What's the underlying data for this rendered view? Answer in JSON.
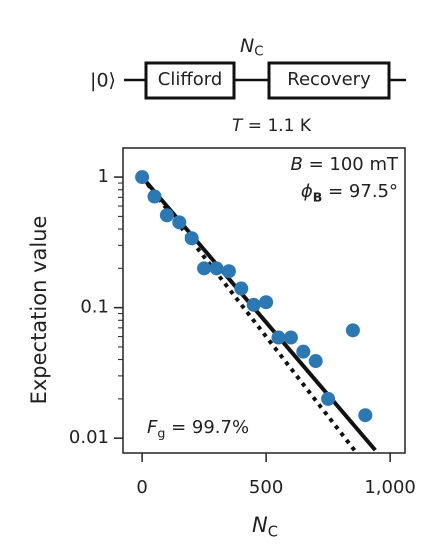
{
  "circuit": {
    "state": "|0⟩",
    "gates": [
      "Clifford",
      "Recovery"
    ],
    "repeat_label": [
      {
        "text": "N",
        "italic": true
      },
      {
        "text": "C",
        "sub": true
      }
    ],
    "condition": [
      {
        "text": "T",
        "italic": true
      },
      {
        "text": " = 1.1 K"
      }
    ]
  },
  "chart_data": {
    "type": "scatter",
    "x_label": [
      {
        "text": "N",
        "italic": true
      },
      {
        "text": "C",
        "sub": true
      }
    ],
    "y_label": "Expectation value",
    "points": {
      "color": "#2b78b3",
      "x": [
        0,
        50,
        100,
        150,
        200,
        250,
        300,
        350,
        400,
        450,
        500,
        550,
        600,
        650,
        700,
        750,
        850,
        900
      ],
      "y": [
        1.0,
        0.71,
        0.51,
        0.45,
        0.34,
        0.2,
        0.2,
        0.19,
        0.14,
        0.105,
        0.11,
        0.059,
        0.059,
        0.046,
        0.039,
        0.02,
        0.067,
        0.015
      ]
    },
    "lines": [
      {
        "x": [
          0,
          940
        ],
        "y": [
          1.0,
          0.0081
        ],
        "color": "#111111",
        "style": "solid"
      },
      {
        "x": [
          0,
          865
        ],
        "y": [
          1.0,
          0.0077
        ],
        "color": "#111111",
        "style": "dotted"
      }
    ],
    "annotations": [
      [
        {
          "text": "B",
          "italic": true
        },
        {
          "text": " = 100 mT"
        }
      ],
      [
        {
          "text": "ϕ",
          "italic": true
        },
        {
          "text": "B",
          "sub": true,
          "bold": true
        },
        {
          "text": " = 97.5°"
        }
      ],
      [
        {
          "text": "F",
          "italic": true
        },
        {
          "text": "g",
          "sub": true
        },
        {
          "text": " = 99.7%"
        }
      ]
    ],
    "log_y": true,
    "xlim": [
      -77,
      1060
    ],
    "ylim": [
      0.0077,
      1.67
    ],
    "xticks": [
      0,
      500,
      {
        "value": 1000,
        "label": "1,000"
      }
    ],
    "yticks": [
      0.01,
      0.1,
      1
    ],
    "yminorticks": [
      0.02,
      0.03,
      0.04,
      0.05,
      0.06,
      0.07,
      0.08,
      0.09,
      0.2,
      0.3,
      0.4,
      0.5,
      0.6,
      0.7,
      0.8,
      0.9
    ]
  }
}
